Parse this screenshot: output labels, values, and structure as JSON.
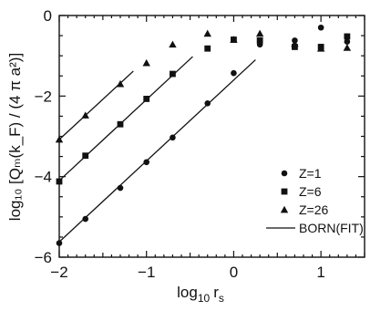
{
  "chart_data": {
    "type": "scatter",
    "title": "",
    "xlabel": {
      "base": "log",
      "sub": "10",
      "var": "r",
      "var_sub": "s"
    },
    "ylabel": "log₁₀ [Qₘ(k_F) / (4 π a²)]",
    "xlim": [
      -2,
      1.5
    ],
    "ylim": [
      -6,
      0
    ],
    "xticks": [
      -2,
      -1,
      0,
      1
    ],
    "xtick_labels": [
      "−2",
      "−1",
      "0",
      "1"
    ],
    "yticks": [
      -6,
      -4,
      -2,
      0
    ],
    "ytick_labels": [
      "−6",
      "−4",
      "−2",
      "0"
    ],
    "grid": false,
    "legend_position": "right",
    "series": [
      {
        "name": "Z=1",
        "marker": "circle",
        "points": [
          [
            -2.0,
            -5.65
          ],
          [
            -1.7,
            -5.05
          ],
          [
            -1.3,
            -4.28
          ],
          [
            -1.0,
            -3.64
          ],
          [
            -0.7,
            -3.03
          ],
          [
            -0.3,
            -2.18
          ],
          [
            0.0,
            -1.43
          ],
          [
            0.3,
            -0.72
          ],
          [
            0.7,
            -0.62
          ],
          [
            1.0,
            -0.3
          ],
          [
            1.3,
            -0.65
          ]
        ]
      },
      {
        "name": "Z=6",
        "marker": "square",
        "points": [
          [
            -2.0,
            -4.12
          ],
          [
            -1.7,
            -3.48
          ],
          [
            -1.3,
            -2.7
          ],
          [
            -1.0,
            -2.07
          ],
          [
            -0.7,
            -1.45
          ],
          [
            -0.3,
            -0.82
          ],
          [
            0.0,
            -0.6
          ],
          [
            0.3,
            -0.62
          ],
          [
            0.7,
            -0.78
          ],
          [
            1.0,
            -0.78
          ],
          [
            1.3,
            -0.52
          ]
        ]
      },
      {
        "name": "Z=26",
        "marker": "triangle",
        "points": [
          [
            -2.0,
            -3.08
          ],
          [
            -1.7,
            -2.48
          ],
          [
            -1.3,
            -1.7
          ],
          [
            -1.0,
            -1.18
          ],
          [
            -0.7,
            -0.72
          ],
          [
            -0.3,
            -0.45
          ],
          [
            0.0,
            -0.6
          ],
          [
            0.3,
            -0.45
          ],
          [
            0.7,
            -0.7
          ],
          [
            1.0,
            -0.82
          ],
          [
            1.3,
            -0.8
          ]
        ]
      },
      {
        "name": "BORN(FIT)",
        "marker": "line",
        "segments": [
          [
            [
              -2.0,
              -5.62
            ],
            [
              0.25,
              -1.1
            ]
          ],
          [
            [
              -2.0,
              -4.1
            ],
            [
              -0.47,
              -1.02
            ]
          ],
          [
            [
              -2.0,
              -3.08
            ],
            [
              -1.15,
              -1.38
            ]
          ]
        ]
      }
    ]
  }
}
